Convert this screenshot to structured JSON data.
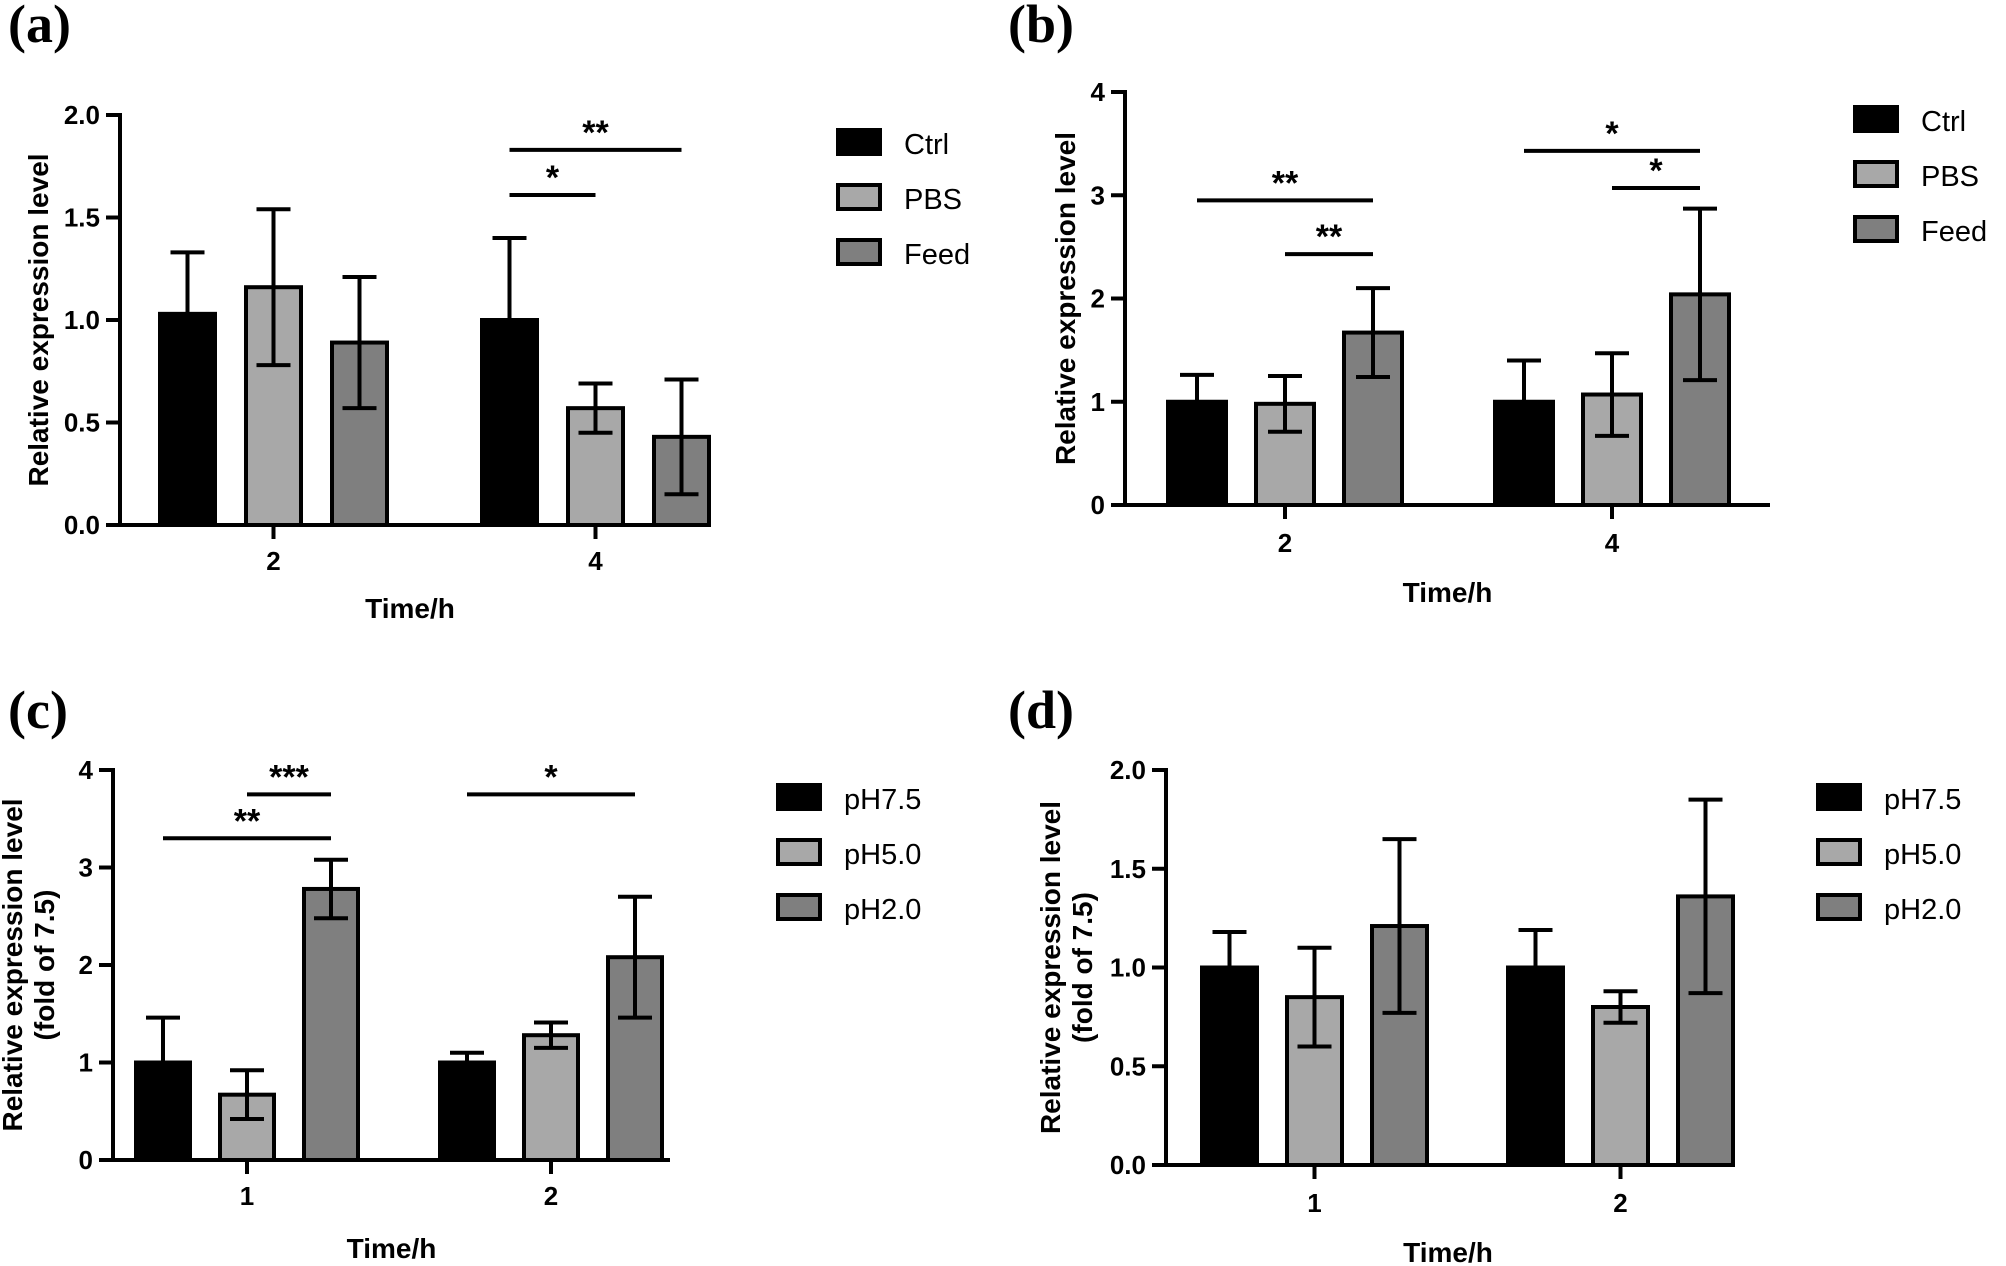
{
  "chart_data": [
    {
      "type": "bar",
      "panel_label": "(a)",
      "categories": [
        "2",
        "4"
      ],
      "series": [
        {
          "name": "Ctrl",
          "color": "#000000",
          "values": [
            1.03,
            1.0
          ],
          "errors": [
            0.3,
            0.4
          ]
        },
        {
          "name": "PBS",
          "color": "#a8a8a8",
          "values": [
            1.16,
            0.57
          ],
          "errors": [
            0.38,
            0.12
          ]
        },
        {
          "name": "Feed",
          "color": "#7f7f7f",
          "values": [
            0.89,
            0.43
          ],
          "errors": [
            0.32,
            0.28
          ]
        }
      ],
      "xlabel": "Time/h",
      "ylabel": [
        "Relative expression level"
      ],
      "ylim": [
        0,
        2.0
      ],
      "yticks": [
        0.0,
        0.5,
        1.0,
        1.5,
        2.0
      ],
      "ytick_labels": [
        "0.0",
        "0.5",
        "1.0",
        "1.5",
        "2.0"
      ],
      "significance": [
        {
          "group": 1,
          "from": 0,
          "to": 2,
          "level": 1.83,
          "label": "**"
        },
        {
          "group": 1,
          "from": 0,
          "to": 1,
          "level": 1.61,
          "label": "*"
        }
      ]
    },
    {
      "type": "bar",
      "panel_label": "(b)",
      "categories": [
        "2",
        "4"
      ],
      "series": [
        {
          "name": "Ctrl",
          "color": "#000000",
          "values": [
            1.0,
            1.0
          ],
          "errors": [
            0.26,
            0.4
          ]
        },
        {
          "name": "PBS",
          "color": "#a8a8a8",
          "values": [
            0.98,
            1.07
          ],
          "errors": [
            0.27,
            0.4
          ]
        },
        {
          "name": "Feed",
          "color": "#7f7f7f",
          "values": [
            1.67,
            2.04
          ],
          "errors": [
            0.43,
            0.83
          ]
        }
      ],
      "xlabel": "Time/h",
      "ylabel": [
        "Relative expression level"
      ],
      "ylim": [
        0,
        4
      ],
      "yticks": [
        0,
        1,
        2,
        3,
        4
      ],
      "ytick_labels": [
        "0",
        "1",
        "2",
        "3",
        "4"
      ],
      "significance": [
        {
          "group": 0,
          "from": 0,
          "to": 2,
          "level": 2.95,
          "label": "**"
        },
        {
          "group": 0,
          "from": 1,
          "to": 2,
          "level": 2.43,
          "label": "**"
        },
        {
          "group": 1,
          "from": 0,
          "to": 2,
          "level": 3.43,
          "label": "*"
        },
        {
          "group": 1,
          "from": 1,
          "to": 2,
          "level": 3.07,
          "label": "*"
        }
      ]
    },
    {
      "type": "bar",
      "panel_label": "(c)",
      "categories": [
        "1",
        "2"
      ],
      "series": [
        {
          "name": "pH7.5",
          "color": "#000000",
          "values": [
            1.0,
            1.0
          ],
          "errors": [
            0.46,
            0.1
          ]
        },
        {
          "name": "pH5.0",
          "color": "#a8a8a8",
          "values": [
            0.67,
            1.28
          ],
          "errors": [
            0.25,
            0.13
          ]
        },
        {
          "name": "pH2.0",
          "color": "#7f7f7f",
          "values": [
            2.78,
            2.08
          ],
          "errors": [
            0.3,
            0.62
          ]
        }
      ],
      "xlabel": "Time/h",
      "ylabel": [
        "Relative expression level",
        "(fold of 7.5)"
      ],
      "ylim": [
        0,
        4
      ],
      "yticks": [
        0,
        1,
        2,
        3,
        4
      ],
      "ytick_labels": [
        "0",
        "1",
        "2",
        "3",
        "4"
      ],
      "significance": [
        {
          "group": 0,
          "from": 1,
          "to": 2,
          "level": 3.75,
          "label": "***"
        },
        {
          "group": 0,
          "from": 0,
          "to": 2,
          "level": 3.3,
          "label": "**"
        },
        {
          "group": 1,
          "from": 0,
          "to": 2,
          "level": 3.75,
          "label": "*"
        }
      ]
    },
    {
      "type": "bar",
      "panel_label": "(d)",
      "categories": [
        "1",
        "2"
      ],
      "series": [
        {
          "name": "pH7.5",
          "color": "#000000",
          "values": [
            1.0,
            1.0
          ],
          "errors": [
            0.18,
            0.19
          ]
        },
        {
          "name": "pH5.0",
          "color": "#a8a8a8",
          "values": [
            0.85,
            0.8
          ],
          "errors": [
            0.25,
            0.08
          ]
        },
        {
          "name": "pH2.0",
          "color": "#7f7f7f",
          "values": [
            1.21,
            1.36
          ],
          "errors": [
            0.44,
            0.49
          ]
        }
      ],
      "xlabel": "Time/h",
      "ylabel": [
        "Relative expression level",
        "(fold of 7.5)"
      ],
      "ylim": [
        0,
        2.0
      ],
      "yticks": [
        0.0,
        0.5,
        1.0,
        1.5,
        2.0
      ],
      "ytick_labels": [
        "0.0",
        "0.5",
        "1.0",
        "1.5",
        "2.0"
      ],
      "significance": []
    }
  ]
}
